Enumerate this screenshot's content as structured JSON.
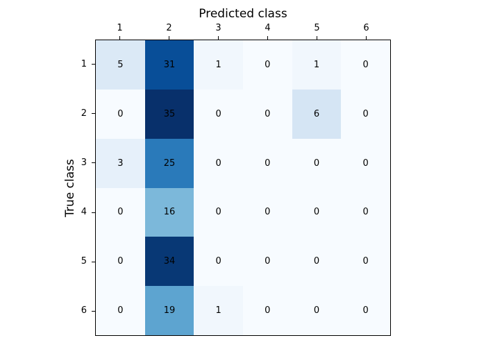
{
  "chart_data": {
    "type": "heatmap",
    "title": "Predicted class",
    "xlabel": "Predicted class",
    "ylabel": "True class",
    "x_tick_labels": [
      "1",
      "2",
      "3",
      "4",
      "5",
      "6"
    ],
    "y_tick_labels": [
      "1",
      "2",
      "3",
      "4",
      "5",
      "6"
    ],
    "matrix": [
      [
        5,
        31,
        1,
        0,
        1,
        0
      ],
      [
        0,
        35,
        0,
        0,
        6,
        0
      ],
      [
        3,
        25,
        0,
        0,
        0,
        0
      ],
      [
        0,
        16,
        0,
        0,
        0,
        0
      ],
      [
        0,
        34,
        0,
        0,
        0,
        0
      ],
      [
        0,
        19,
        1,
        0,
        0,
        0
      ]
    ],
    "cell_colors": [
      [
        "#dbe9f6",
        "#084e98",
        "#f1f7fd",
        "#f7fbff",
        "#f1f7fd",
        "#f7fbff"
      ],
      [
        "#f7fbff",
        "#08306b",
        "#f7fbff",
        "#f7fbff",
        "#d5e5f4",
        "#f7fbff"
      ],
      [
        "#e6f0fa",
        "#2a7aba",
        "#f7fbff",
        "#f7fbff",
        "#f7fbff",
        "#f7fbff"
      ],
      [
        "#f7fbff",
        "#7cb8da",
        "#f7fbff",
        "#f7fbff",
        "#f7fbff",
        "#f7fbff"
      ],
      [
        "#f7fbff",
        "#083875",
        "#f7fbff",
        "#f7fbff",
        "#f7fbff",
        "#f7fbff"
      ],
      [
        "#f7fbff",
        "#5da4d0",
        "#f1f7fd",
        "#f7fbff",
        "#f7fbff",
        "#f7fbff"
      ]
    ],
    "colormap": "Blues",
    "vmin": 0,
    "vmax": 35,
    "text_color": "#000000",
    "spine_color": "#000000",
    "background_color": "#ffffff",
    "x_tick_position": "top",
    "grid": false,
    "legend": "none"
  }
}
